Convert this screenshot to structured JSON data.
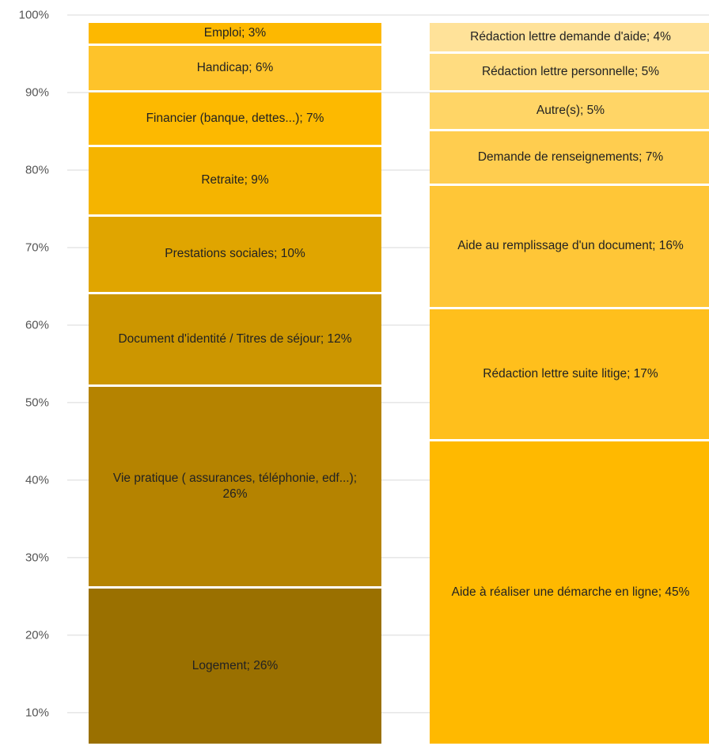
{
  "chart_data": {
    "type": "stacked_bar",
    "ylim": [
      5.7,
      100
    ],
    "yticks": [
      {
        "value": 10,
        "label": "10%"
      },
      {
        "value": 20,
        "label": "20%"
      },
      {
        "value": 30,
        "label": "30%"
      },
      {
        "value": 40,
        "label": "40%"
      },
      {
        "value": 50,
        "label": "50%"
      },
      {
        "value": 60,
        "label": "60%"
      },
      {
        "value": 70,
        "label": "70%"
      },
      {
        "value": 80,
        "label": "80%"
      },
      {
        "value": 90,
        "label": "90%"
      },
      {
        "value": 100,
        "label": "100%"
      }
    ],
    "grid": true,
    "bars": [
      {
        "segments": [
          {
            "label": "Logement; 26%",
            "value": 26,
            "color": "#9a7000"
          },
          {
            "label": "Vie pratique ( assurances, téléphonie, edf...); 26%",
            "value": 26,
            "color": "#b58300"
          },
          {
            "label": "Document d'identité / Titres de séjour; 12%",
            "value": 12,
            "color": "#cc9600"
          },
          {
            "label": "Prestations sociales; 10%",
            "value": 10,
            "color": "#e0a500"
          },
          {
            "label": "Retraite; 9%",
            "value": 9,
            "color": "#f5b400"
          },
          {
            "label": "Financier (banque, dettes...); 7%",
            "value": 7,
            "color": "#fdb900"
          },
          {
            "label": "Handicap; 6%",
            "value": 6,
            "color": "#fec32a"
          },
          {
            "label": "Emploi; 3%",
            "value": 3,
            "color": "#fdb800"
          }
        ]
      },
      {
        "segments": [
          {
            "label": "Aide à réaliser une démarche en ligne; 45%",
            "value": 45,
            "color": "#ffb900"
          },
          {
            "label": "Rédaction lettre suite litige; 17%",
            "value": 17,
            "color": "#ffbf1c"
          },
          {
            "label": "Aide au remplissage d'un document; 16%",
            "value": 16,
            "color": "#ffc637"
          },
          {
            "label": "Demande de renseignements; 7%",
            "value": 7,
            "color": "#ffcd4f"
          },
          {
            "label": "Autre(s); 5%",
            "value": 5,
            "color": "#ffd566"
          },
          {
            "label": "Rédaction lettre personnelle; 5%",
            "value": 5,
            "color": "#ffdc80"
          },
          {
            "label": "Rédaction lettre demande d'aide; 4%",
            "value": 4,
            "color": "#ffe299"
          }
        ]
      }
    ]
  }
}
